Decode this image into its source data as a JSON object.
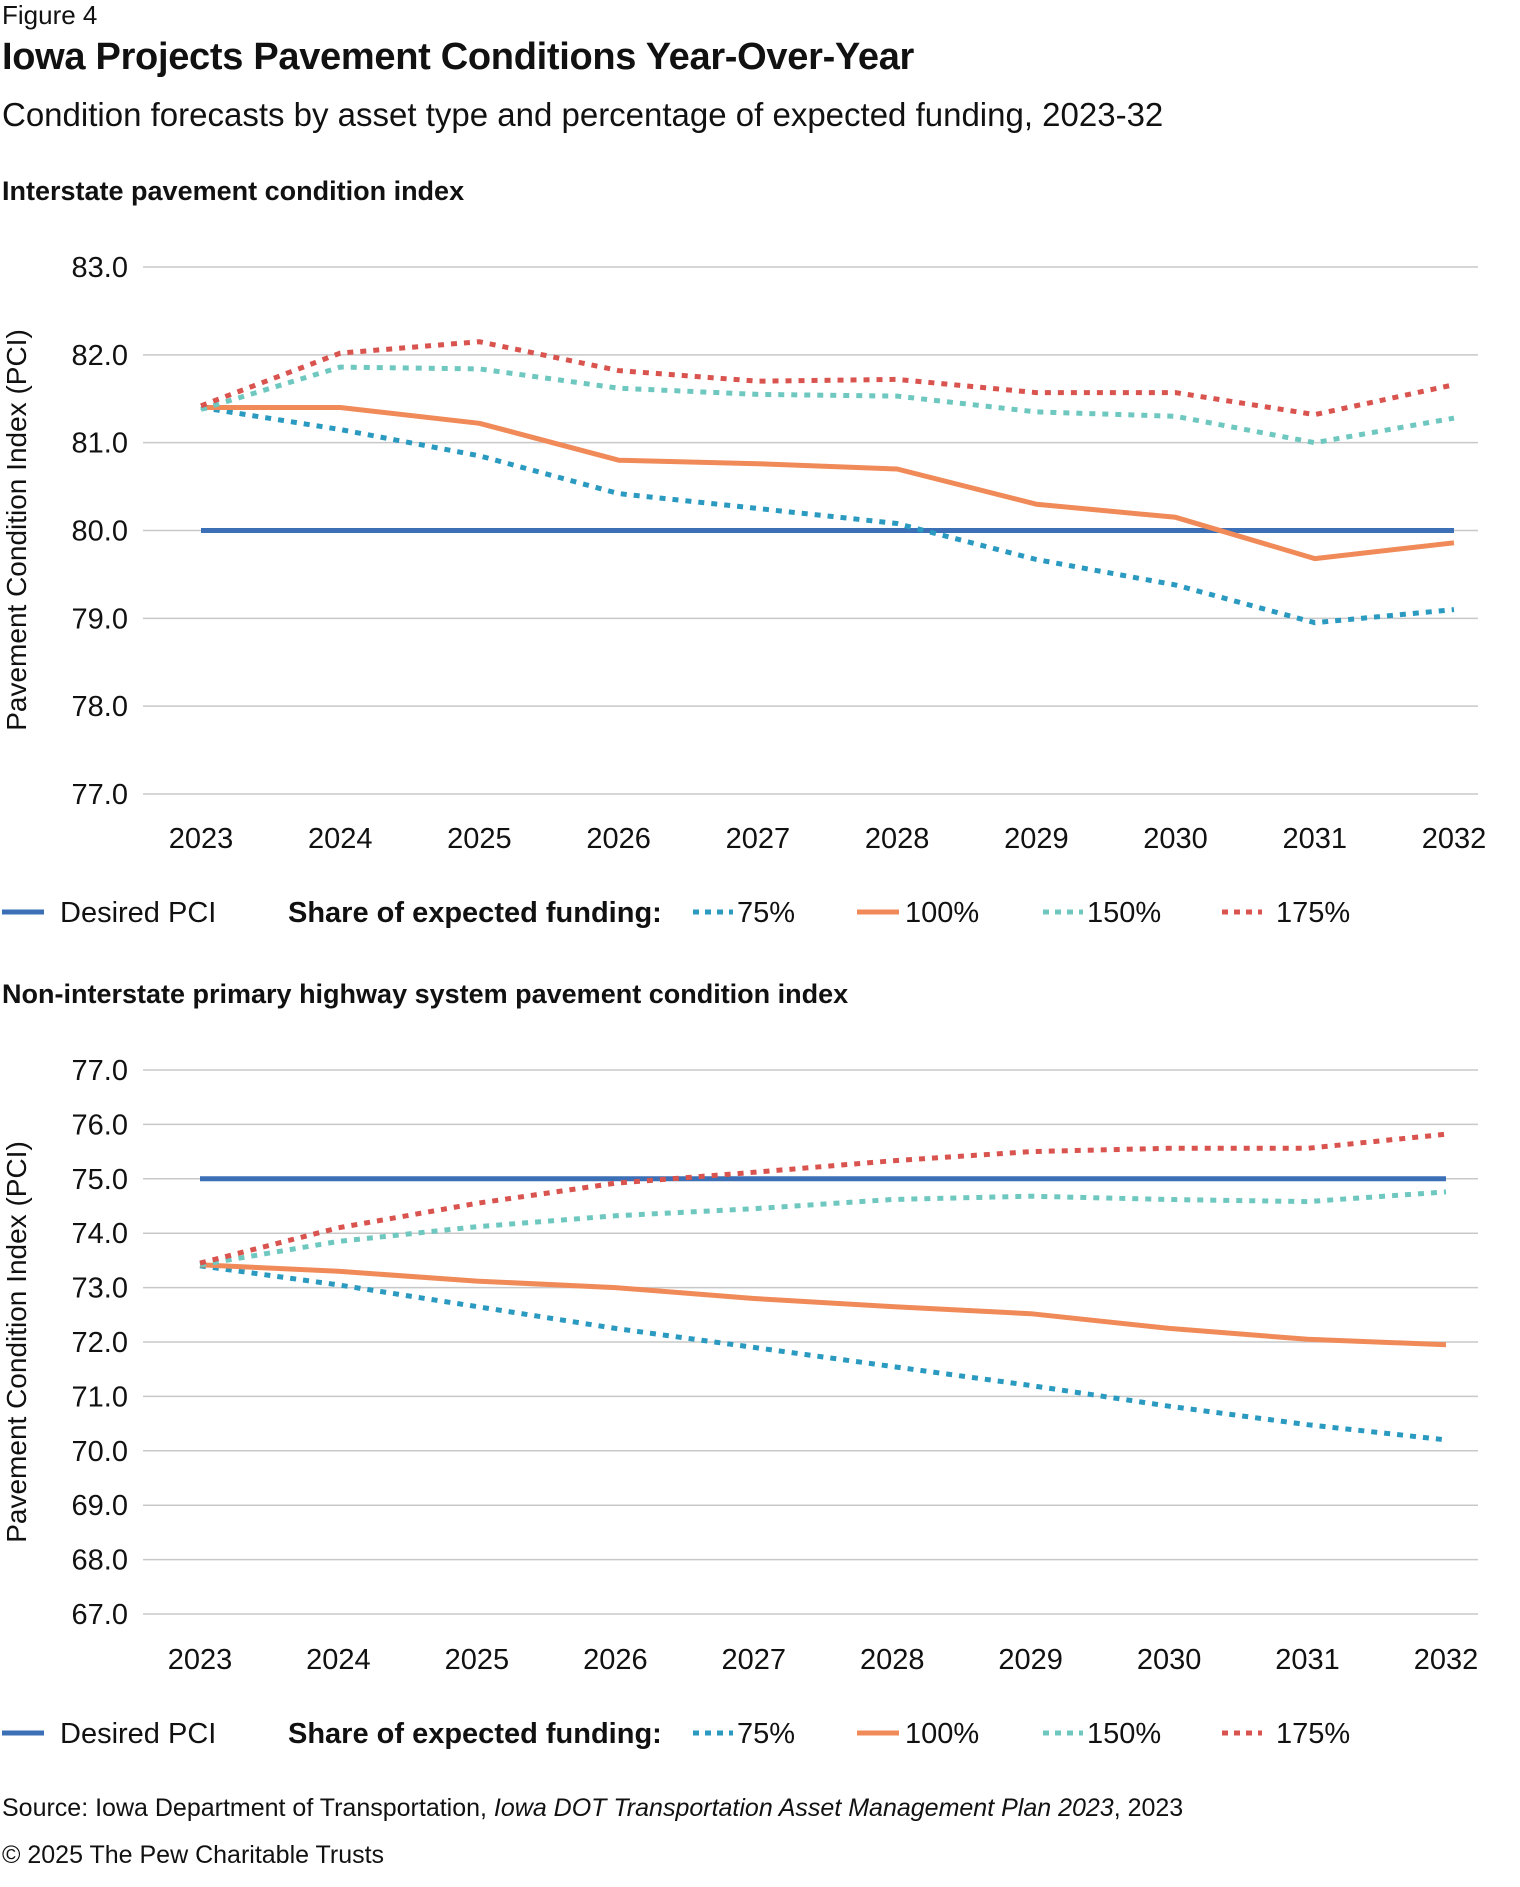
{
  "figure_label": "Figure 4",
  "title": "Iowa Projects Pavement Conditions Year-Over-Year",
  "subtitle": "Condition forecasts by asset type and percentage of expected funding, 2023-32",
  "source": {
    "prefix": "Source: Iowa Department of Transportation, ",
    "publication": "Iowa DOT Transportation Asset Management Plan 2023",
    "suffix": ", 2023"
  },
  "copyright": "© 2025 The Pew Charitable Trusts",
  "colors": {
    "desired": "#3b6fb6",
    "f75": "#2a9ac0",
    "f100": "#f08a58",
    "f150": "#6fc8c0",
    "f175": "#d9534f",
    "grid": "#c8c8c8",
    "text": "#111111"
  },
  "chart_data": [
    {
      "type": "line",
      "title": "Interstate pavement condition index",
      "ylabel": "Pavement Condition Index (PCI)",
      "xlabel": "",
      "ylim": [
        77.0,
        83.0
      ],
      "yticks": [
        "77.0",
        "78.0",
        "79.0",
        "80.0",
        "81.0",
        "82.0",
        "83.0"
      ],
      "x": [
        "2023",
        "2024",
        "2025",
        "2026",
        "2027",
        "2028",
        "2029",
        "2030",
        "2031",
        "2032"
      ],
      "legend": {
        "desired_label": "Desired PCI",
        "funding_label": "Share of expected funding:",
        "position": "bottom"
      },
      "series": [
        {
          "name": "Desired PCI",
          "key": "desired",
          "style": "solid",
          "values": [
            80.0,
            80.0,
            80.0,
            80.0,
            80.0,
            80.0,
            80.0,
            80.0,
            80.0,
            80.0
          ]
        },
        {
          "name": "75%",
          "key": "f75",
          "style": "dotted",
          "values": [
            81.4,
            81.15,
            80.85,
            80.42,
            80.25,
            80.08,
            79.67,
            79.38,
            78.95,
            79.1
          ]
        },
        {
          "name": "100%",
          "key": "f100",
          "style": "solid",
          "values": [
            81.4,
            81.4,
            81.22,
            80.8,
            80.76,
            80.7,
            80.3,
            80.15,
            79.68,
            79.86
          ]
        },
        {
          "name": "150%",
          "key": "f150",
          "style": "dotted",
          "values": [
            81.38,
            81.86,
            81.84,
            81.62,
            81.55,
            81.53,
            81.35,
            81.3,
            81.0,
            81.28
          ]
        },
        {
          "name": "175%",
          "key": "f175",
          "style": "dotted",
          "values": [
            81.42,
            82.02,
            82.15,
            81.82,
            81.7,
            81.72,
            81.57,
            81.57,
            81.32,
            81.66
          ]
        }
      ]
    },
    {
      "type": "line",
      "title": "Non-interstate primary highway system pavement condition index",
      "ylabel": "Pavement Condition Index (PCI)",
      "xlabel": "",
      "ylim": [
        67.0,
        77.0
      ],
      "yticks": [
        "67.0",
        "68.0",
        "69.0",
        "70.0",
        "71.0",
        "72.0",
        "73.0",
        "74.0",
        "75.0",
        "76.0",
        "77.0"
      ],
      "x": [
        "2023",
        "2024",
        "2025",
        "2026",
        "2027",
        "2028",
        "2029",
        "2030",
        "2031",
        "2032"
      ],
      "legend": {
        "desired_label": "Desired PCI",
        "funding_label": "Share of expected funding:",
        "position": "bottom"
      },
      "series": [
        {
          "name": "Desired PCI",
          "key": "desired",
          "style": "solid",
          "values": [
            75.0,
            75.0,
            75.0,
            75.0,
            75.0,
            75.0,
            75.0,
            75.0,
            75.0,
            75.0
          ]
        },
        {
          "name": "75%",
          "key": "f75",
          "style": "dotted",
          "values": [
            73.4,
            73.05,
            72.65,
            72.25,
            71.9,
            71.55,
            71.2,
            70.82,
            70.48,
            70.2
          ]
        },
        {
          "name": "100%",
          "key": "f100",
          "style": "solid",
          "values": [
            73.42,
            73.3,
            73.12,
            73.0,
            72.8,
            72.65,
            72.52,
            72.25,
            72.05,
            71.95
          ]
        },
        {
          "name": "150%",
          "key": "f150",
          "style": "dotted",
          "values": [
            73.42,
            73.85,
            74.12,
            74.32,
            74.45,
            74.62,
            74.68,
            74.62,
            74.58,
            74.76
          ]
        },
        {
          "name": "175%",
          "key": "f175",
          "style": "dotted",
          "values": [
            73.45,
            74.1,
            74.55,
            74.92,
            75.12,
            75.33,
            75.5,
            75.56,
            75.56,
            75.82
          ]
        }
      ]
    }
  ]
}
